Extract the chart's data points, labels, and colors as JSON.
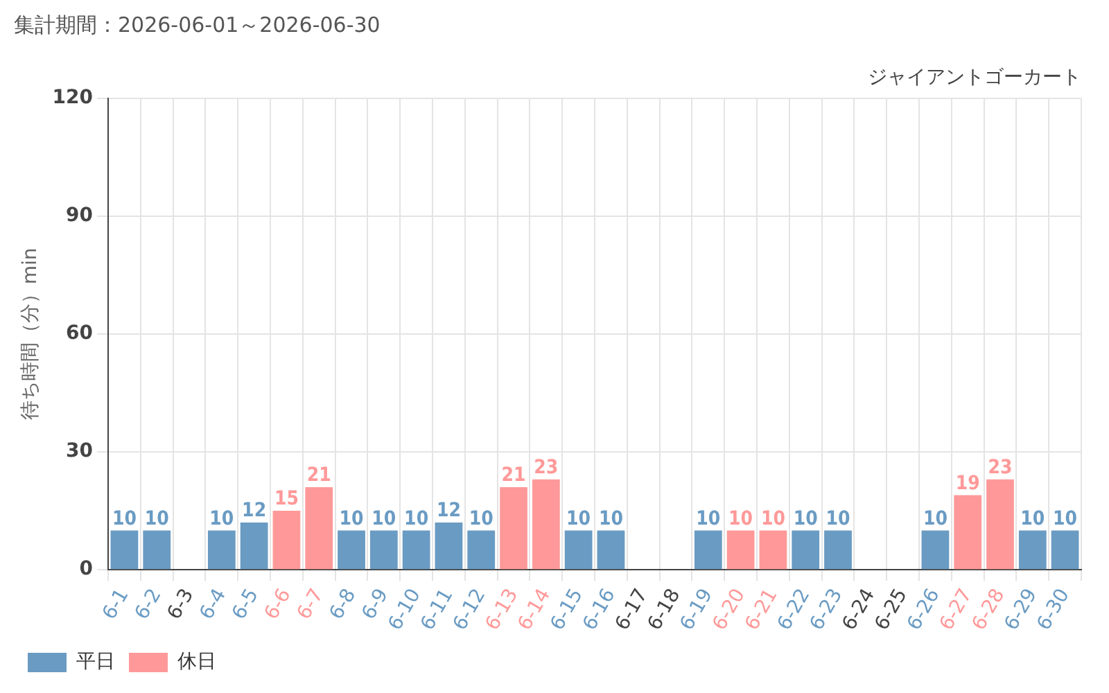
{
  "chart_data": {
    "type": "bar",
    "title": "集計期間：2026-06-01～2026-06-30",
    "subtitle": "ジャイアントゴーカート",
    "ylabel": "待ち時間（分）min",
    "categories": [
      "6-1",
      "6-2",
      "6-3",
      "6-4",
      "6-5",
      "6-6",
      "6-7",
      "6-8",
      "6-9",
      "6-10",
      "6-11",
      "6-12",
      "6-13",
      "6-14",
      "6-15",
      "6-16",
      "6-17",
      "6-18",
      "6-19",
      "6-20",
      "6-21",
      "6-22",
      "6-23",
      "6-24",
      "6-25",
      "6-26",
      "6-27",
      "6-28",
      "6-29",
      "6-30"
    ],
    "series": [
      {
        "name": "平日",
        "color": "#6a9bc3",
        "values": [
          10,
          10,
          null,
          10,
          12,
          null,
          null,
          10,
          10,
          10,
          12,
          10,
          null,
          null,
          10,
          10,
          null,
          null,
          10,
          null,
          null,
          10,
          10,
          null,
          null,
          10,
          null,
          null,
          10,
          10
        ]
      },
      {
        "name": "休日",
        "color": "#ff9999",
        "values": [
          null,
          null,
          null,
          null,
          null,
          15,
          21,
          null,
          null,
          null,
          null,
          null,
          21,
          23,
          null,
          null,
          null,
          null,
          null,
          10,
          10,
          null,
          null,
          null,
          null,
          null,
          19,
          23,
          null,
          null
        ]
      }
    ],
    "stacked": true,
    "ylim": [
      0,
      120
    ],
    "yticks": [
      0,
      30,
      60,
      90,
      120
    ],
    "grid": true,
    "legend": "bottom left",
    "data_labels": true
  }
}
